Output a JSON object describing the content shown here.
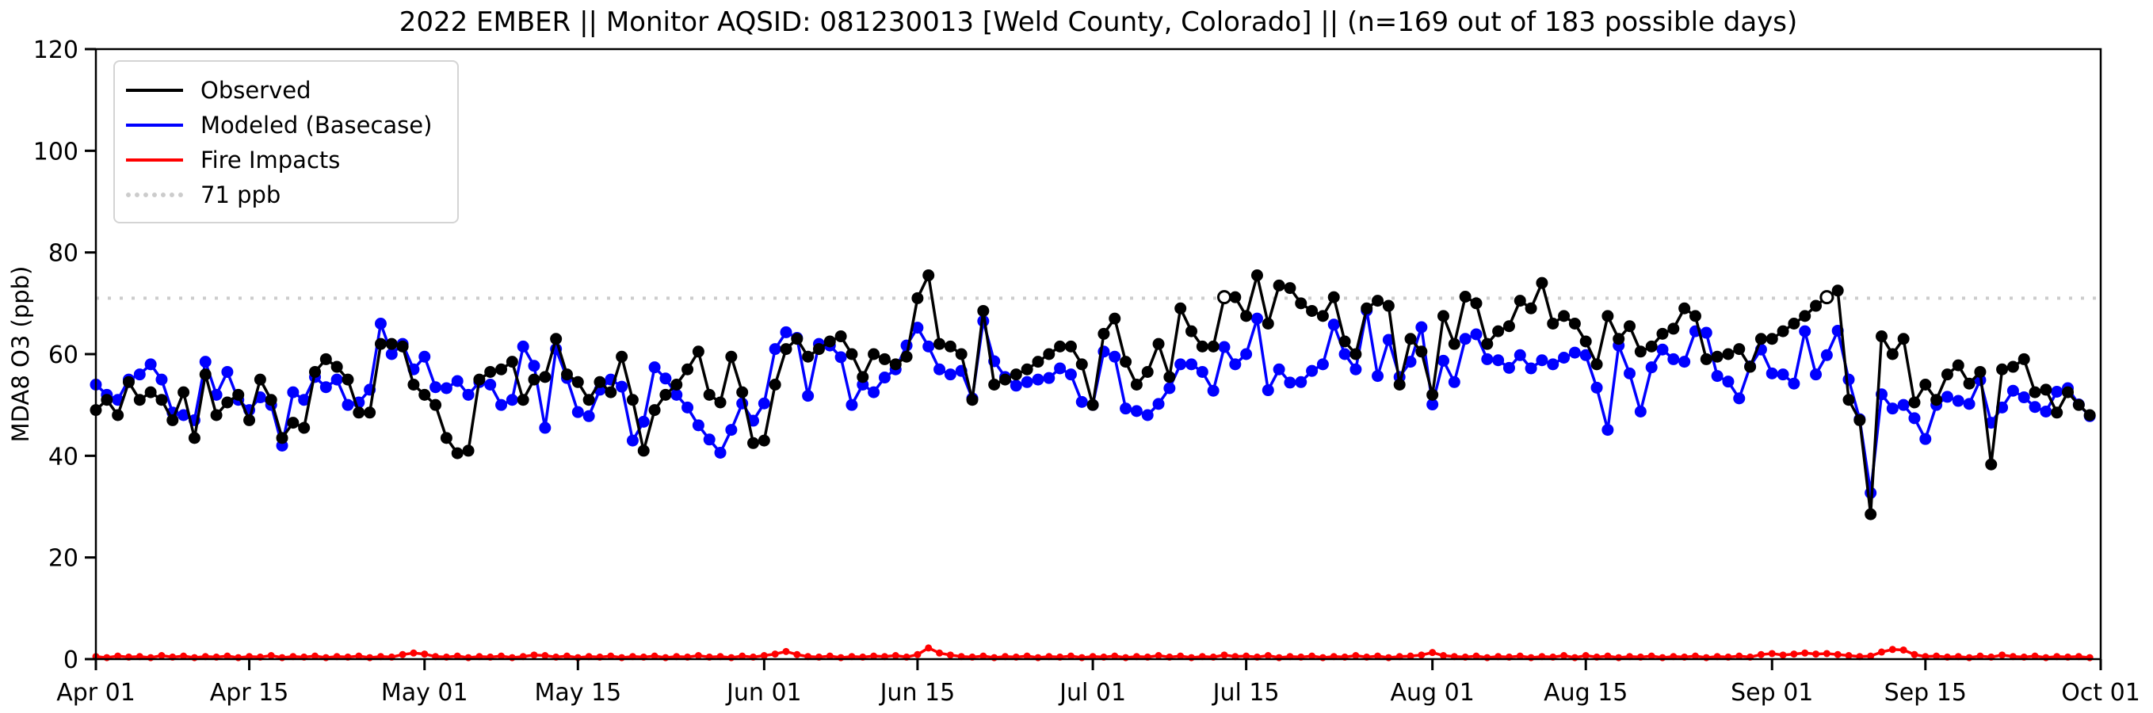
{
  "title": "2022 EMBER || Monitor AQSID: 081230013 [Weld County, Colorado] || (n=169 out of 183 possible days)",
  "legend": {
    "items": [
      {
        "label": "Observed",
        "color": "#000000",
        "style": "solid"
      },
      {
        "label": "Modeled (Basecase)",
        "color": "#0000ff",
        "style": "solid"
      },
      {
        "label": "Fire Impacts",
        "color": "#ff0000",
        "style": "solid"
      },
      {
        "label": "71 ppb",
        "color": "#cccccc",
        "style": "dotted"
      }
    ]
  },
  "chart_data": {
    "type": "line",
    "title": "2022 EMBER || Monitor AQSID: 081230013 [Weld County, Colorado] || (n=169 out of 183 possible days)",
    "xlabel": "",
    "ylabel": "MDA8 O3 (ppb)",
    "ylim": [
      0,
      120
    ],
    "yticks": [
      0,
      20,
      40,
      60,
      80,
      100,
      120
    ],
    "x_days_total": 183,
    "x_start_date": "Apr 01",
    "x_end_date": "Oct 01",
    "grid": false,
    "legend_position": "upper left",
    "xticks": [
      {
        "label": "Apr 01",
        "day": 0
      },
      {
        "label": "Apr 15",
        "day": 14
      },
      {
        "label": "May 01",
        "day": 30
      },
      {
        "label": "May 15",
        "day": 44
      },
      {
        "label": "Jun 01",
        "day": 61
      },
      {
        "label": "Jun 15",
        "day": 75
      },
      {
        "label": "Jul 01",
        "day": 91
      },
      {
        "label": "Jul 15",
        "day": 105
      },
      {
        "label": "Aug 01",
        "day": 122
      },
      {
        "label": "Aug 15",
        "day": 136
      },
      {
        "label": "Sep 01",
        "day": 153
      },
      {
        "label": "Sep 15",
        "day": 167
      },
      {
        "label": "Oct 01",
        "day": 183
      }
    ],
    "threshold": {
      "value": 71,
      "label": "71 ppb",
      "color": "#cccccc"
    },
    "observed_open_marker_days": [
      103,
      158
    ],
    "series": [
      {
        "name": "Observed",
        "color": "#000000",
        "marker_radius": 7.5,
        "values": [
          49,
          51,
          48,
          54.5,
          51,
          52.5,
          51,
          47,
          52.5,
          43.5,
          56,
          48,
          50.5,
          52,
          47,
          55,
          51,
          43.5,
          46.5,
          45.5,
          56.5,
          59,
          57.5,
          55,
          48.5,
          48.5,
          62,
          62,
          61.5,
          54,
          52,
          50,
          43.5,
          40.5,
          41,
          55,
          56.5,
          57,
          58.5,
          51,
          55,
          55.5,
          63,
          56,
          54.5,
          51,
          54.5,
          52.5,
          59.5,
          51,
          41,
          49,
          52,
          54,
          57,
          60.5,
          52,
          50.5,
          59.5,
          52.5,
          42.5,
          43,
          54,
          61,
          63,
          59.5,
          61,
          62.5,
          63.5,
          60,
          55.5,
          60,
          59,
          58,
          59.5,
          71,
          75.5,
          62,
          61.5,
          60,
          51,
          68.5,
          54,
          55,
          56,
          57,
          58.5,
          60,
          61.5,
          61.5,
          58,
          50,
          64,
          67,
          58.5,
          54,
          56.5,
          62,
          55.5,
          69,
          64.5,
          61.5,
          61.5,
          71.2,
          71.2,
          67.5,
          75.5,
          66,
          73.5,
          73,
          70,
          68.5,
          67.5,
          71.2,
          62.5,
          60,
          69,
          70.5,
          69.5,
          54,
          63,
          60.5,
          52,
          67.5,
          62,
          71.3,
          70,
          62,
          64.5,
          65.5,
          70.5,
          69,
          74,
          66,
          67.5,
          66,
          62.5,
          58,
          67.5,
          63,
          65.5,
          60.5,
          61.5,
          64,
          65,
          69,
          67.5,
          59,
          59.5,
          60,
          61,
          57.5,
          63,
          63,
          64.5,
          66,
          67.5,
          69.5,
          71.2,
          72.5,
          51,
          47,
          28.5,
          63.5,
          60,
          63,
          50.5,
          54,
          51,
          56,
          57.8,
          54.2,
          56.5,
          38.3,
          57,
          57.5,
          59,
          52.5,
          53,
          48.5,
          52.5,
          50,
          48
        ]
      },
      {
        "name": "Modeled (Basecase)",
        "color": "#0000ff",
        "marker_radius": 7.5,
        "values": [
          54,
          52,
          51,
          55,
          56,
          58,
          55,
          48.5,
          48,
          47,
          58.5,
          52,
          56.5,
          51,
          49,
          51.5,
          50,
          42,
          52.5,
          51,
          55.5,
          53.5,
          55,
          50,
          50.5,
          53,
          66,
          60,
          62,
          57,
          59.5,
          53.5,
          53.3,
          54.7,
          52,
          54.5,
          54,
          50,
          51,
          61.5,
          57.7,
          45.5,
          61,
          55.3,
          48.6,
          47.8,
          53,
          55,
          53.6,
          43,
          46.7,
          57.4,
          55.2,
          52,
          49.5,
          46,
          43.2,
          40.6,
          45.1,
          50.3,
          46.9,
          50.3,
          61,
          64.3,
          63.2,
          51.8,
          62,
          61.7,
          59.4,
          50,
          54,
          52.5,
          55.4,
          57,
          61.7,
          65.2,
          61.5,
          57,
          56,
          56.7,
          51.3,
          66.5,
          58.6,
          55.5,
          53.8,
          54.5,
          55,
          55.3,
          57.2,
          56,
          50.6,
          50,
          60.5,
          59.5,
          49.3,
          48.8,
          48,
          50.2,
          53.3,
          58,
          58,
          56.5,
          52.8,
          61.4,
          58,
          60,
          67,
          52.9,
          57,
          54.4,
          54.5,
          56.7,
          58,
          65.8,
          60,
          57,
          68.6,
          55.7,
          62.8,
          55.5,
          58.5,
          65.3,
          50.1,
          58.7,
          54.5,
          63,
          63.9,
          59,
          58.8,
          57.3,
          59.8,
          57.2,
          58.8,
          58,
          59.3,
          60.3,
          59.8,
          53.4,
          45.1,
          61.7,
          56.2,
          48.7,
          57.4,
          60.9,
          59,
          58.5,
          64.5,
          64.2,
          55.7,
          54.6,
          51.3,
          57.6,
          60.9,
          56.2,
          56,
          54.2,
          64.5,
          56,
          59.8,
          64.6,
          55,
          47.2,
          32.7,
          52.1,
          49.3,
          50,
          47.4,
          43.3,
          50,
          51.6,
          50.8,
          50.2,
          54.9,
          46.5,
          49.5,
          52.8,
          51.5,
          49.6,
          48.7,
          52.6,
          53.3,
          50.1,
          47.8
        ]
      },
      {
        "name": "Fire Impacts",
        "color": "#ff0000",
        "marker_radius": 4.5,
        "values": [
          0.5,
          0.3,
          0.6,
          0.4,
          0.5,
          0.3,
          0.7,
          0.4,
          0.6,
          0.3,
          0.5,
          0.4,
          0.6,
          0.3,
          0.5,
          0.4,
          0.7,
          0.3,
          0.5,
          0.4,
          0.6,
          0.3,
          0.5,
          0.4,
          0.6,
          0.3,
          0.5,
          0.4,
          0.9,
          1.2,
          1.0,
          0.5,
          0.4,
          0.6,
          0.3,
          0.5,
          0.4,
          0.6,
          0.3,
          0.5,
          0.8,
          0.7,
          0.4,
          0.6,
          0.3,
          0.5,
          0.4,
          0.6,
          0.3,
          0.5,
          0.4,
          0.6,
          0.3,
          0.5,
          0.4,
          0.7,
          0.4,
          0.5,
          0.3,
          0.6,
          0.4,
          0.7,
          1.0,
          1.5,
          0.9,
          0.5,
          0.4,
          0.6,
          0.3,
          0.5,
          0.4,
          0.6,
          0.5,
          0.7,
          0.4,
          0.9,
          2.2,
          1.2,
          0.8,
          0.5,
          0.4,
          0.6,
          0.3,
          0.5,
          0.4,
          0.6,
          0.3,
          0.5,
          0.4,
          0.6,
          0.3,
          0.5,
          0.4,
          0.6,
          0.3,
          0.5,
          0.4,
          0.7,
          0.4,
          0.6,
          0.3,
          0.5,
          0.4,
          0.8,
          0.5,
          0.6,
          0.4,
          0.7,
          0.3,
          0.5,
          0.4,
          0.6,
          0.3,
          0.5,
          0.4,
          0.7,
          0.4,
          0.6,
          0.3,
          0.5,
          0.6,
          0.8,
          1.3,
          0.7,
          0.5,
          0.4,
          0.6,
          0.3,
          0.5,
          0.4,
          0.6,
          0.3,
          0.5,
          0.4,
          0.7,
          0.3,
          0.7,
          0.4,
          0.6,
          0.3,
          0.5,
          0.4,
          0.6,
          0.3,
          0.5,
          0.4,
          0.6,
          0.3,
          0.5,
          0.4,
          0.6,
          0.4,
          0.9,
          1.1,
          0.8,
          1.0,
          1.2,
          1.0,
          1.1,
          0.9,
          0.7,
          0.5,
          0.6,
          1.4,
          1.9,
          1.8,
          0.9,
          0.5,
          0.6,
          0.4,
          0.5,
          0.3,
          0.6,
          0.4,
          0.8,
          0.5,
          0.4,
          0.6,
          0.3,
          0.5,
          0.4,
          0.5,
          0.3
        ]
      }
    ]
  }
}
